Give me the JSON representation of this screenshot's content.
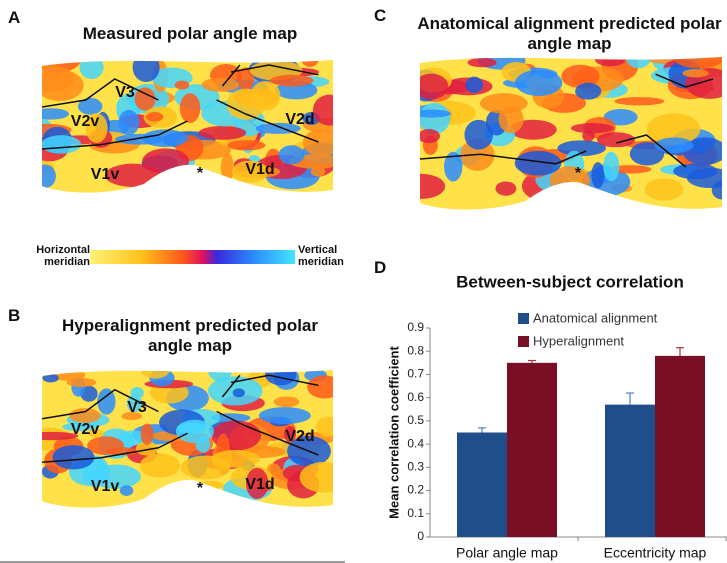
{
  "panels": [
    {
      "label": "A",
      "title": "Measured polar angle map",
      "regions": [
        "V3",
        "V2v",
        "V2d",
        "V1v",
        "V1d"
      ],
      "marker": "*"
    },
    {
      "label": "B",
      "title": "Hyperalignment predicted polar angle map",
      "regions": [
        "V3",
        "V2v",
        "V2d",
        "V1v",
        "V1d"
      ],
      "marker": "*"
    },
    {
      "label": "C",
      "title": "Anatomical alignment predicted polar angle map",
      "marker": "*"
    },
    {
      "label": "D"
    }
  ],
  "colorbar": {
    "left": "Horizontal meridian",
    "right": "Vertical meridian"
  },
  "chart_data": {
    "type": "bar",
    "title": "Between-subject correlation",
    "ylabel": "Mean correlation coefficient",
    "categories": [
      "Polar angle map",
      "Eccentricity map"
    ],
    "series": [
      {
        "name": "Anatomical alignment",
        "color": "#1f4e8a",
        "values": [
          0.45,
          0.57
        ],
        "errors": [
          0.02,
          0.05
        ]
      },
      {
        "name": "Hyperalignment",
        "color": "#7a0e24",
        "values": [
          0.75,
          0.78
        ],
        "errors": [
          0.01,
          0.035
        ]
      }
    ],
    "ylim": [
      0,
      0.9
    ],
    "yticks": [
      0,
      0.1,
      0.2,
      0.3,
      0.4,
      0.5,
      0.6,
      0.7,
      0.8,
      0.9
    ],
    "grid": false,
    "legend": "top"
  }
}
